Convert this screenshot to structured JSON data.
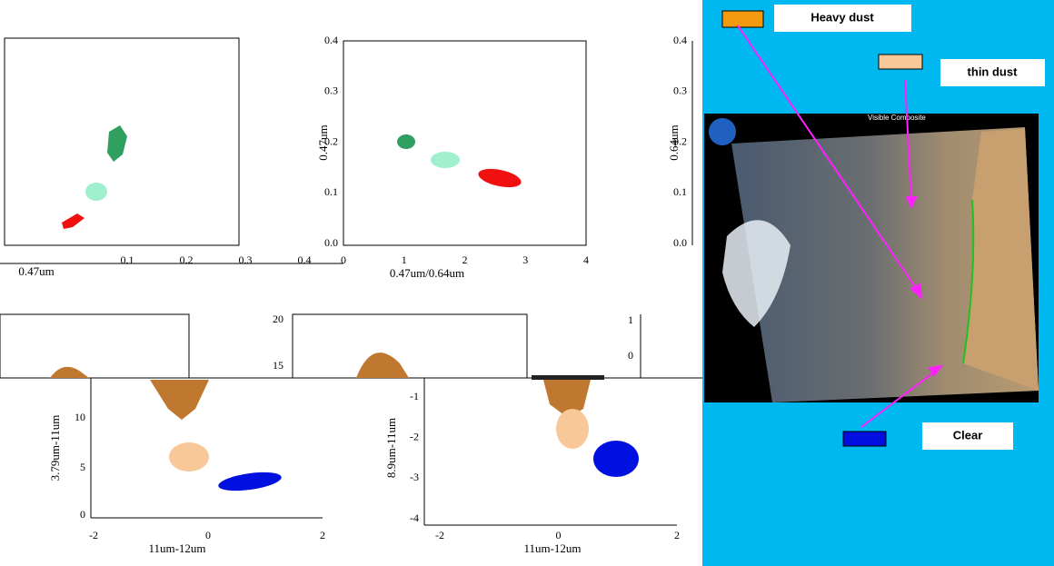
{
  "panels": [
    {
      "x_label": "0.47um",
      "x_ticks": [
        "0.1",
        "0.2",
        "0.3",
        "0.4"
      ]
    },
    {
      "x_label": "0.47um/0.64um",
      "y_label": "0.47um",
      "x_ticks": [
        "0",
        "1",
        "2",
        "3",
        "4"
      ],
      "y_ticks": [
        "0.0",
        "0.1",
        "0.2",
        "0.3",
        "0.4"
      ]
    },
    {
      "y_label": "0.64um",
      "y_ticks": [
        "0.0",
        "0.1",
        "0.2",
        "0.3",
        "0.4"
      ]
    },
    {
      "x_label": "11um-12um",
      "y_label": "3.79um-11um",
      "x_ticks": [
        "-2",
        "0",
        "2"
      ],
      "y_ticks": [
        "0",
        "5",
        "10"
      ],
      "upper_ticks": [
        "20",
        "15"
      ]
    },
    {
      "x_label": "11um-12um",
      "y_label": "8.9um-11um",
      "x_ticks": [
        "-2",
        "0",
        "2"
      ],
      "y_ticks": [
        "-1",
        "-2",
        "-3",
        "-4"
      ],
      "upper_ticks": [
        "1",
        "0"
      ]
    }
  ],
  "image": {
    "title": "Visible Composite"
  },
  "legend": [
    {
      "label": "Heavy dust",
      "color": "#f39a10"
    },
    {
      "label": "thin dust",
      "color": "#f8c898"
    },
    {
      "label": "Clear",
      "color": "#0010e0"
    }
  ]
}
